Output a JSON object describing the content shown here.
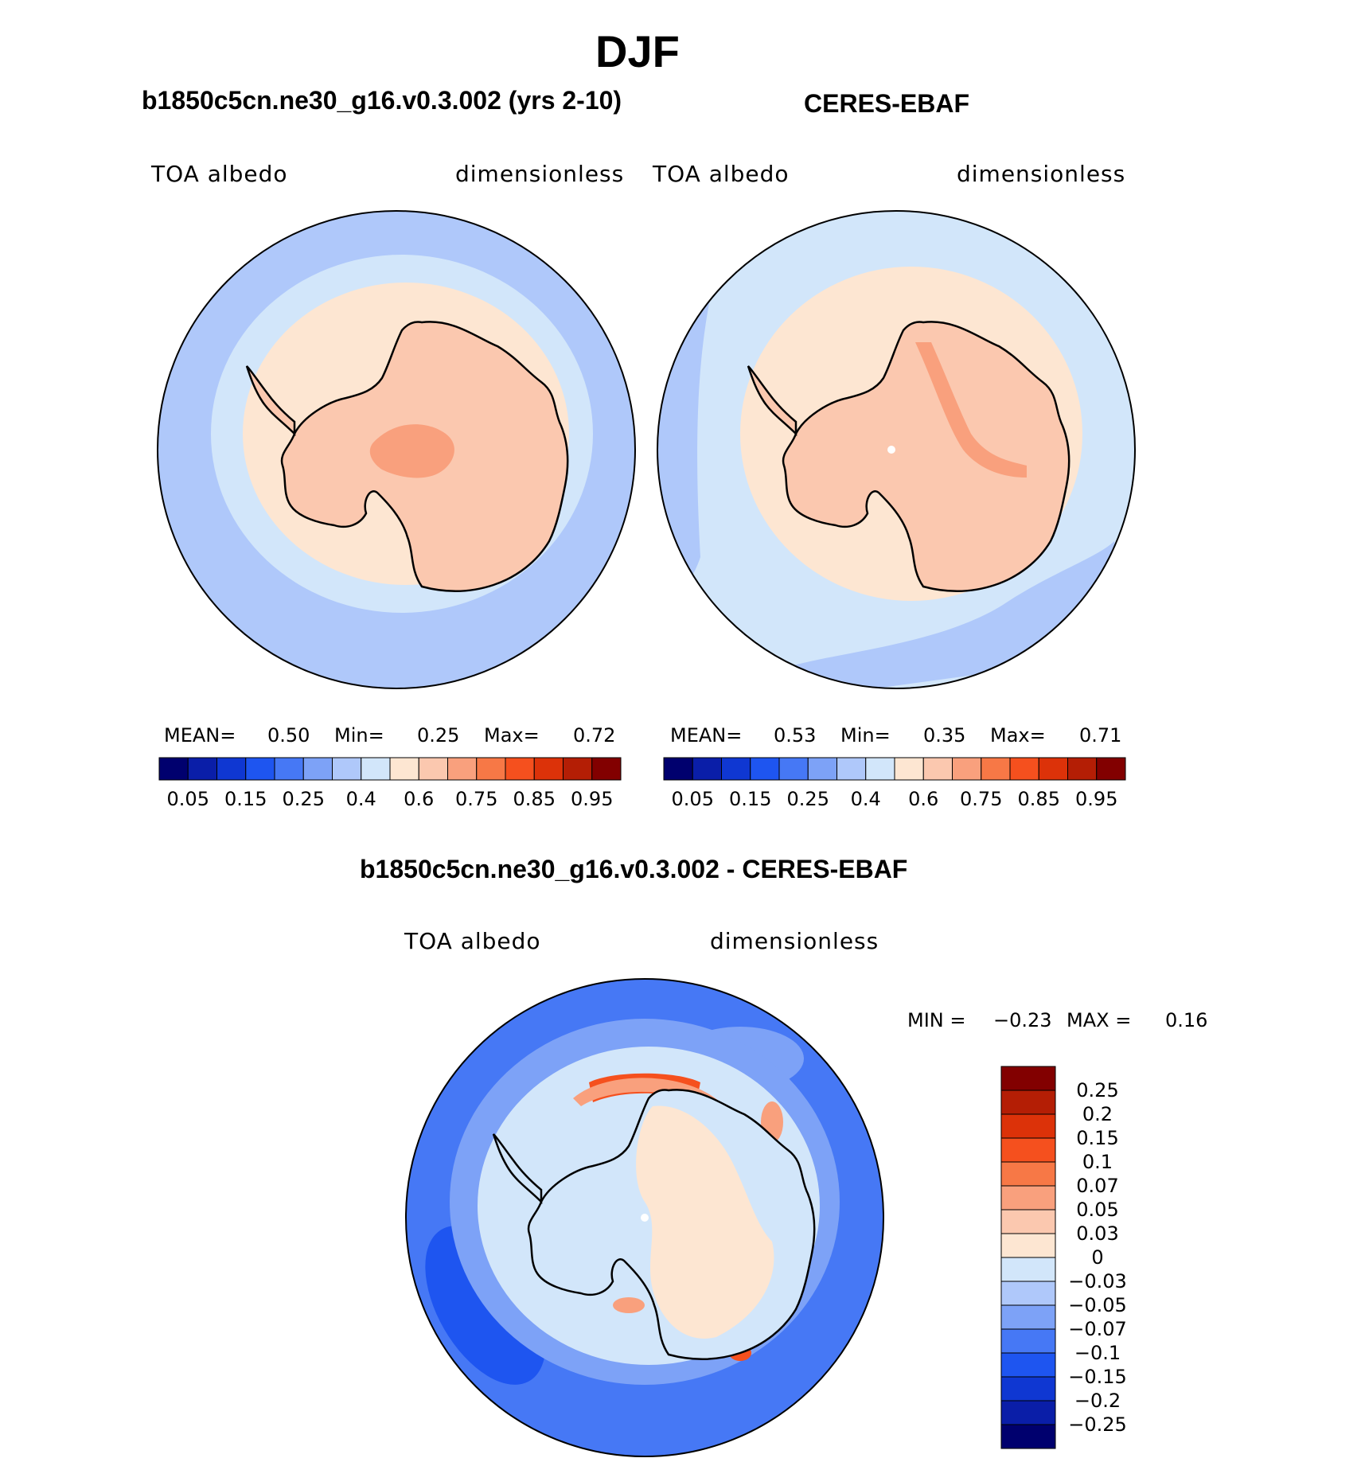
{
  "figure": {
    "title": "DJF"
  },
  "panels": {
    "model": {
      "case_title": "b1850c5cn.ne30_g16.v0.3.002 (yrs 2-10)",
      "variable": "TOA albedo",
      "units": "dimensionless",
      "stats": {
        "mean_label": "MEAN=",
        "mean": "0.50",
        "min_label": "Min=",
        "min": "0.25",
        "max_label": "Max=",
        "max": "0.72"
      }
    },
    "obs": {
      "case_title": "CERES-EBAF",
      "variable": "TOA albedo",
      "units": "dimensionless",
      "stats": {
        "mean_label": "MEAN=",
        "mean": "0.53",
        "min_label": "Min=",
        "min": "0.35",
        "max_label": "Max=",
        "max": "0.71"
      }
    },
    "diff": {
      "case_title": "b1850c5cn.ne30_g16.v0.3.002 - CERES-EBAF",
      "variable": "TOA albedo",
      "units": "dimensionless",
      "stats": {
        "min_label": "MIN =",
        "min": "−0.23",
        "max_label": "MAX =",
        "max": "0.16"
      }
    }
  },
  "colorbars": {
    "abs_labels": [
      "0.05",
      "0.15",
      "0.25",
      "0.4",
      "0.6",
      "0.75",
      "0.85",
      "0.95"
    ],
    "abs_colors": [
      "#00006e",
      "#0a1ea8",
      "#0f37d2",
      "#1e55f0",
      "#4678f5",
      "#7da2f7",
      "#afc8fa",
      "#d2e6fa",
      "#fde6d2",
      "#fbc8af",
      "#f9a07d",
      "#f77846",
      "#f5501e",
      "#dc3209",
      "#b41e05",
      "#820000"
    ],
    "diff_labels": [
      "0.25",
      "0.2",
      "0.15",
      "0.1",
      "0.07",
      "0.05",
      "0.03",
      "0",
      "−0.03",
      "−0.05",
      "−0.07",
      "−0.1",
      "−0.15",
      "−0.2",
      "−0.25"
    ],
    "diff_colors": [
      "#820000",
      "#b41e05",
      "#dc3209",
      "#f5501e",
      "#f77846",
      "#f9a07d",
      "#fbc8af",
      "#fde6d2",
      "#d2e6fa",
      "#afc8fa",
      "#7da2f7",
      "#4678f5",
      "#1e55f0",
      "#0f37d2",
      "#0a1ea8",
      "#00006e"
    ]
  },
  "map_colors": {
    "ocean_model": "#afc8fa",
    "ocean_obs": "#d2e6fa",
    "ocean_diff": "#4678f5",
    "ice_ring": "#d2e6fa",
    "sea_ice": "#fde6d2",
    "continent": "#fbc8af",
    "high_albedo": "#f9a07d",
    "coast": "#000000"
  }
}
